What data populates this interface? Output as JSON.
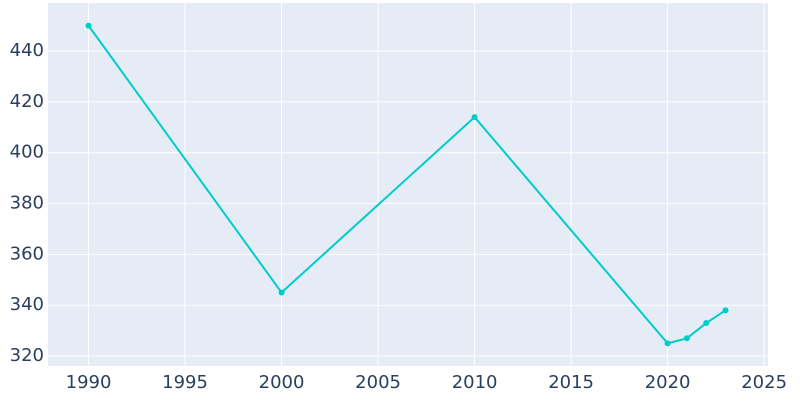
{
  "chart_data": {
    "type": "line",
    "x": [
      1990,
      2000,
      2010,
      2020,
      2021,
      2022,
      2023
    ],
    "series": [
      {
        "color": "#00cccc",
        "values": [
          450,
          345,
          414,
          325,
          327,
          333,
          338
        ]
      }
    ],
    "xlim": [
      1987.9,
      2025.2
    ],
    "xticks": [
      1990,
      1995,
      2000,
      2005,
      2010,
      2015,
      2020,
      2025
    ],
    "ylim": [
      316.1,
      458.9
    ],
    "yticks": [
      320,
      340,
      360,
      380,
      400,
      420,
      440
    ],
    "grid": true
  }
}
